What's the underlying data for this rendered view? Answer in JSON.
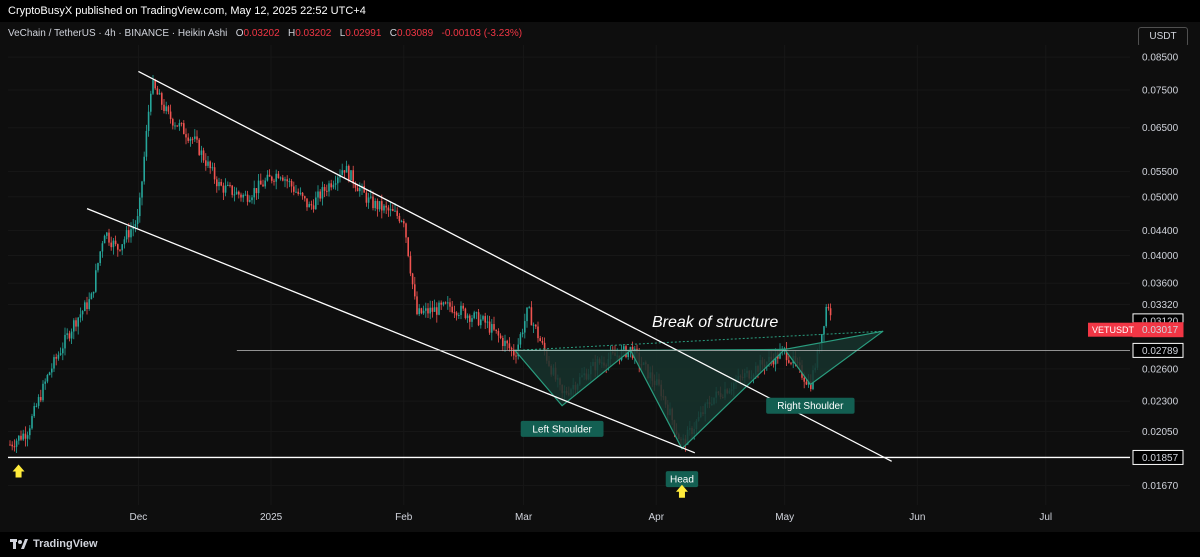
{
  "header": {
    "publisher_line": "CryptoBusyX published on TradingView.com, May 12, 2025 22:52 UTC+4"
  },
  "legend": {
    "symbol_line": "VeChain / TetherUS · 4h · BINANCE · Heikin Ashi",
    "o_label": "O",
    "o_value": "0.03202",
    "h_label": "H",
    "h_value": "0.03202",
    "l_label": "L",
    "l_value": "0.02991",
    "c_label": "C",
    "c_value": "0.03089",
    "change": "-0.00103 (-3.23%)"
  },
  "currency": "USDT",
  "footer": {
    "brand": "TradingView"
  },
  "colors": {
    "up": "#26a69a",
    "down": "#ef5350",
    "pattern_fill": "#16332d",
    "pattern_stroke": "#2a9d7f",
    "label_bg": "#135f52",
    "price_tag": "#f23645",
    "arrow": "#ffeb3b"
  },
  "chart_data": {
    "type": "candlestick",
    "scale": "log",
    "ylim": [
      0.0155,
      0.089
    ],
    "y_ticks": [
      "0.08500",
      "0.07500",
      "0.06500",
      "0.05500",
      "0.05000",
      "0.04400",
      "0.04000",
      "0.03600",
      "0.03320",
      "0.02600",
      "0.02300",
      "0.02050",
      "0.01670"
    ],
    "x_ticks": [
      "Dec",
      "2025",
      "Feb",
      "Mar",
      "Apr",
      "May",
      "Jun",
      "Jul"
    ],
    "x_tick_dates": [
      "2024-12-01",
      "2025-01-01",
      "2025-02-01",
      "2025-03-01",
      "2025-04-01",
      "2025-05-01",
      "2025-06-01",
      "2025-07-01"
    ],
    "price_path": [
      {
        "date": "2024-11-01",
        "price": 0.0195
      },
      {
        "date": "2024-11-05",
        "price": 0.0205
      },
      {
        "date": "2024-11-10",
        "price": 0.0255
      },
      {
        "date": "2024-11-16",
        "price": 0.031
      },
      {
        "date": "2024-11-20",
        "price": 0.034
      },
      {
        "date": "2024-11-23",
        "price": 0.044
      },
      {
        "date": "2024-11-26",
        "price": 0.041
      },
      {
        "date": "2024-12-01",
        "price": 0.046
      },
      {
        "date": "2024-12-04",
        "price": 0.077
      },
      {
        "date": "2024-12-08",
        "price": 0.068
      },
      {
        "date": "2024-12-14",
        "price": 0.062
      },
      {
        "date": "2024-12-20",
        "price": 0.052
      },
      {
        "date": "2024-12-26",
        "price": 0.05
      },
      {
        "date": "2025-01-03",
        "price": 0.055
      },
      {
        "date": "2025-01-10",
        "price": 0.048
      },
      {
        "date": "2025-01-18",
        "price": 0.056
      },
      {
        "date": "2025-01-24",
        "price": 0.049
      },
      {
        "date": "2025-02-01",
        "price": 0.046
      },
      {
        "date": "2025-02-04",
        "price": 0.032
      },
      {
        "date": "2025-02-12",
        "price": 0.033
      },
      {
        "date": "2025-02-20",
        "price": 0.031
      },
      {
        "date": "2025-02-27",
        "price": 0.0275
      },
      {
        "date": "2025-03-02",
        "price": 0.0325
      },
      {
        "date": "2025-03-10",
        "price": 0.0235
      },
      {
        "date": "2025-03-18",
        "price": 0.0265
      },
      {
        "date": "2025-03-26",
        "price": 0.028
      },
      {
        "date": "2025-04-02",
        "price": 0.024
      },
      {
        "date": "2025-04-07",
        "price": 0.0195
      },
      {
        "date": "2025-04-14",
        "price": 0.0232
      },
      {
        "date": "2025-04-24",
        "price": 0.026
      },
      {
        "date": "2025-05-01",
        "price": 0.0278
      },
      {
        "date": "2025-05-07",
        "price": 0.0245
      },
      {
        "date": "2025-05-09",
        "price": 0.028
      },
      {
        "date": "2025-05-11",
        "price": 0.0338
      },
      {
        "date": "2025-05-12",
        "price": 0.0309
      }
    ],
    "annotations": {
      "break_of_structure": "Break of structure",
      "left_shoulder": "Left Shoulder",
      "head": "Head",
      "right_shoulder": "Right Shoulder"
    },
    "price_labels": {
      "symbol": "VETUSDT",
      "current_price": "0.03017",
      "level_0_03120": "0.03120",
      "neckline": "0.02789",
      "support": "0.01857"
    },
    "levels": {
      "horizontal_neckline": 0.02789,
      "horizontal_support": 0.01857
    }
  }
}
